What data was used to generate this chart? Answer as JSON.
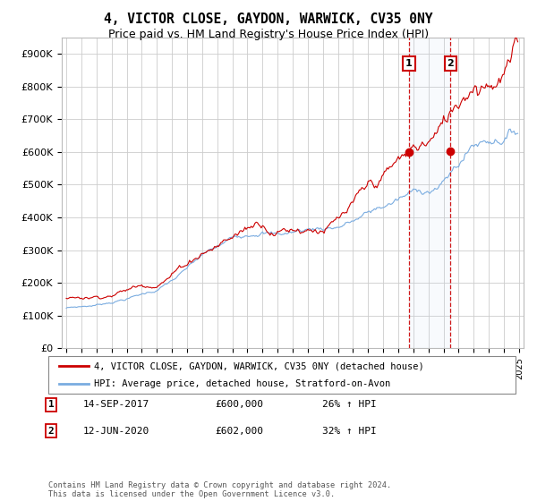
{
  "title": "4, VICTOR CLOSE, GAYDON, WARWICK, CV35 0NY",
  "subtitle": "Price paid vs. HM Land Registry's House Price Index (HPI)",
  "ylim": [
    0,
    950000
  ],
  "yticks": [
    0,
    100000,
    200000,
    300000,
    400000,
    500000,
    600000,
    700000,
    800000,
    900000
  ],
  "ytick_labels": [
    "£0",
    "£100K",
    "£200K",
    "£300K",
    "£400K",
    "£500K",
    "£600K",
    "£700K",
    "£800K",
    "£900K"
  ],
  "sale1_date": "14-SEP-2017",
  "sale1_price": 600000,
  "sale1_pct": "26% ↑ HPI",
  "sale1_x": 2017.71,
  "sale2_date": "12-JUN-2020",
  "sale2_price": 602000,
  "sale2_pct": "32% ↑ HPI",
  "sale2_x": 2020.45,
  "legend_property": "4, VICTOR CLOSE, GAYDON, WARWICK, CV35 0NY (detached house)",
  "legend_hpi": "HPI: Average price, detached house, Stratford-on-Avon",
  "footer": "Contains HM Land Registry data © Crown copyright and database right 2024.\nThis data is licensed under the Open Government Licence v3.0.",
  "property_color": "#cc0000",
  "hpi_color": "#7aace0",
  "background_color": "#ffffff",
  "grid_color": "#cccccc"
}
